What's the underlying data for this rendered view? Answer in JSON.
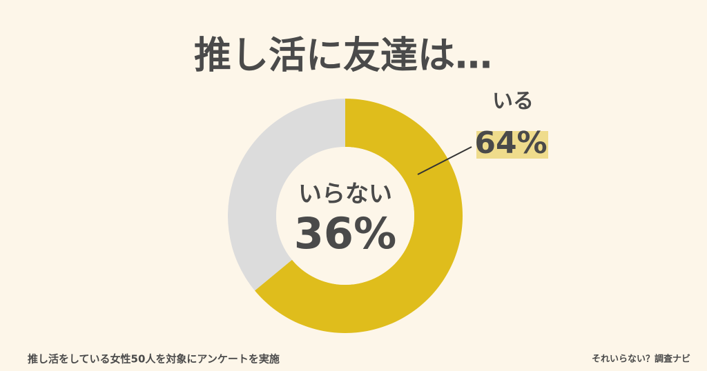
{
  "chart_data": {
    "type": "donut",
    "title": "推し活に友達は…",
    "categories": [
      "いる",
      "いらない"
    ],
    "values": [
      64,
      36
    ],
    "value_labels": [
      "64%",
      "36%"
    ],
    "colors": [
      "#dfbd1c",
      "#dcdcdc"
    ],
    "note": "推し活をしている女性50人を対象にアンケートを実施",
    "source": "それいらない？調査ナビ"
  }
}
